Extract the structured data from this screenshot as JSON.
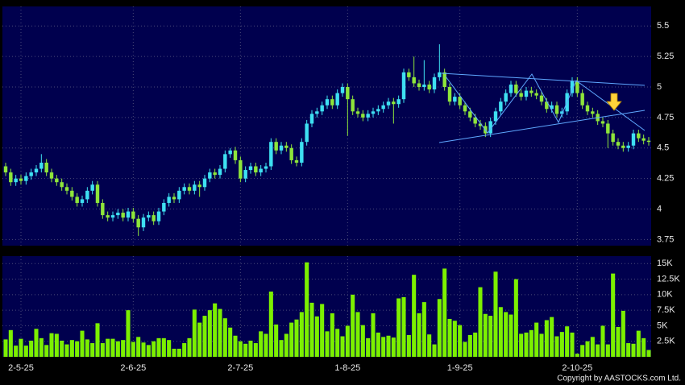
{
  "chart_data": {
    "type": "candlestick",
    "categories": [
      null,
      null,
      null,
      "2-5-25",
      null,
      null,
      null,
      null,
      null,
      null,
      null,
      null,
      null,
      null,
      null,
      null,
      null,
      null,
      null,
      null,
      null,
      null,
      null,
      null,
      null,
      "2-6-25",
      null,
      null,
      null,
      null,
      null,
      null,
      null,
      null,
      null,
      null,
      null,
      null,
      null,
      null,
      null,
      null,
      null,
      null,
      null,
      null,
      "2-7-25",
      null,
      null,
      null,
      null,
      null,
      null,
      null,
      null,
      null,
      null,
      null,
      null,
      null,
      null,
      null,
      null,
      null,
      null,
      null,
      null,
      "1-8-25",
      null,
      null,
      null,
      null,
      null,
      null,
      null,
      null,
      null,
      null,
      null,
      null,
      null,
      null,
      null,
      null,
      null,
      null,
      null,
      null,
      null,
      "1-9-25",
      null,
      null,
      null,
      null,
      null,
      null,
      null,
      null,
      null,
      null,
      null,
      null,
      null,
      null,
      null,
      null,
      null,
      null,
      null,
      null,
      null,
      null,
      "2-10-25",
      null,
      null,
      null,
      null,
      null,
      null,
      null,
      null,
      null,
      null,
      null,
      null,
      null,
      null
    ],
    "open": [
      4.35,
      4.3,
      4.22,
      4.25,
      4.23,
      4.27,
      4.3,
      4.33,
      4.38,
      4.3,
      4.25,
      4.22,
      4.18,
      4.15,
      4.1,
      4.05,
      4.08,
      4.15,
      4.2,
      4.05,
      3.95,
      3.93,
      3.95,
      3.97,
      3.93,
      3.98,
      3.92,
      3.85,
      3.93,
      3.95,
      3.9,
      3.98,
      4.05,
      4.1,
      4.08,
      4.15,
      4.18,
      4.15,
      4.2,
      4.18,
      4.25,
      4.3,
      4.28,
      4.33,
      4.45,
      4.48,
      4.4,
      4.25,
      4.32,
      4.35,
      4.3,
      4.33,
      4.35,
      4.55,
      4.48,
      4.52,
      4.5,
      4.4,
      4.38,
      4.55,
      4.7,
      4.78,
      4.8,
      4.85,
      4.9,
      4.85,
      4.95,
      5.0,
      4.9,
      4.8,
      4.78,
      4.75,
      4.78,
      4.8,
      4.82,
      4.85,
      4.88,
      4.86,
      4.9,
      5.12,
      5.08,
      5.03,
      5.0,
      5.02,
      4.98,
      5.08,
      5.12,
      5.0,
      4.88,
      4.92,
      4.85,
      4.8,
      4.75,
      4.7,
      4.68,
      4.62,
      4.72,
      4.8,
      4.88,
      4.95,
      5.02,
      4.95,
      4.92,
      4.97,
      4.95,
      4.93,
      4.88,
      4.82,
      4.85,
      4.78,
      4.8,
      4.95,
      5.05,
      4.95,
      4.85,
      4.8,
      4.78,
      4.72,
      4.7,
      4.62,
      4.55,
      4.52,
      4.5,
      4.52,
      4.62,
      4.58,
      4.56
    ],
    "high": [
      4.38,
      4.33,
      4.28,
      4.28,
      4.3,
      4.33,
      4.36,
      4.45,
      4.41,
      4.33,
      4.28,
      4.25,
      4.21,
      4.18,
      4.13,
      4.11,
      4.18,
      4.23,
      4.23,
      4.08,
      3.98,
      3.98,
      4.0,
      4.0,
      4.01,
      4.01,
      3.95,
      3.96,
      3.98,
      3.98,
      4.01,
      4.08,
      4.13,
      4.13,
      4.18,
      4.21,
      4.21,
      4.23,
      4.23,
      4.28,
      4.33,
      4.33,
      4.36,
      4.48,
      4.5,
      4.51,
      4.43,
      4.35,
      4.38,
      4.38,
      4.36,
      4.38,
      4.58,
      4.58,
      4.55,
      4.55,
      4.53,
      4.43,
      4.58,
      4.73,
      4.81,
      4.83,
      4.88,
      4.93,
      4.93,
      4.98,
      5.03,
      5.03,
      4.93,
      4.83,
      4.81,
      4.81,
      4.83,
      4.85,
      4.88,
      4.91,
      4.91,
      4.93,
      5.15,
      5.15,
      5.25,
      5.06,
      5.22,
      5.05,
      5.11,
      5.35,
      5.15,
      5.03,
      4.95,
      4.95,
      4.88,
      4.83,
      4.78,
      4.73,
      4.71,
      4.75,
      4.83,
      4.91,
      4.98,
      5.05,
      5.05,
      4.98,
      5.0,
      5.0,
      4.98,
      4.96,
      4.91,
      4.88,
      4.88,
      4.83,
      4.98,
      5.08,
      5.08,
      4.98,
      4.88,
      4.83,
      4.81,
      4.75,
      4.73,
      4.65,
      4.58,
      4.55,
      4.55,
      4.65,
      4.65,
      4.61,
      4.59
    ],
    "low": [
      4.27,
      4.19,
      4.19,
      4.2,
      4.2,
      4.24,
      4.27,
      4.3,
      4.27,
      4.22,
      4.19,
      4.15,
      4.12,
      4.07,
      4.02,
      4.02,
      4.05,
      4.12,
      4.02,
      3.92,
      3.9,
      3.9,
      3.92,
      3.9,
      3.9,
      3.89,
      3.78,
      3.82,
      3.9,
      3.87,
      3.87,
      3.95,
      4.02,
      4.05,
      4.05,
      4.12,
      4.12,
      4.12,
      4.1,
      4.15,
      4.22,
      4.25,
      4.25,
      4.3,
      4.42,
      4.37,
      4.22,
      4.22,
      4.29,
      4.27,
      4.27,
      4.3,
      4.32,
      4.45,
      4.45,
      4.47,
      4.37,
      4.35,
      4.35,
      4.52,
      4.67,
      4.75,
      4.77,
      4.82,
      4.82,
      4.82,
      4.92,
      4.6,
      4.77,
      4.75,
      4.72,
      4.72,
      4.75,
      4.77,
      4.79,
      4.82,
      4.7,
      4.83,
      4.87,
      5.05,
      5.0,
      4.97,
      4.97,
      4.95,
      4.95,
      5.05,
      4.97,
      4.85,
      4.85,
      4.82,
      4.77,
      4.72,
      4.67,
      4.65,
      4.59,
      4.59,
      4.69,
      4.77,
      4.85,
      4.92,
      4.92,
      4.89,
      4.89,
      4.92,
      4.9,
      4.85,
      4.79,
      4.79,
      4.75,
      4.75,
      4.77,
      4.92,
      4.92,
      4.82,
      4.77,
      4.75,
      4.69,
      4.67,
      4.5,
      4.52,
      4.49,
      4.47,
      4.47,
      4.49,
      4.55,
      4.53,
      4.52
    ],
    "close": [
      4.3,
      4.22,
      4.25,
      4.23,
      4.27,
      4.3,
      4.33,
      4.38,
      4.3,
      4.25,
      4.22,
      4.18,
      4.15,
      4.1,
      4.05,
      4.08,
      4.15,
      4.2,
      4.05,
      3.95,
      3.93,
      3.95,
      3.97,
      3.93,
      3.98,
      3.92,
      3.85,
      3.93,
      3.95,
      3.9,
      3.98,
      4.05,
      4.1,
      4.08,
      4.15,
      4.18,
      4.15,
      4.2,
      4.18,
      4.25,
      4.3,
      4.28,
      4.33,
      4.45,
      4.48,
      4.4,
      4.25,
      4.32,
      4.35,
      4.3,
      4.33,
      4.35,
      4.55,
      4.48,
      4.52,
      4.5,
      4.4,
      4.38,
      4.55,
      4.7,
      4.78,
      4.8,
      4.85,
      4.9,
      4.85,
      4.95,
      5.0,
      4.9,
      4.8,
      4.78,
      4.75,
      4.78,
      4.8,
      4.82,
      4.85,
      4.88,
      4.86,
      4.9,
      5.12,
      5.08,
      5.03,
      5.0,
      5.02,
      4.98,
      5.08,
      5.12,
      5.0,
      4.88,
      4.92,
      4.85,
      4.8,
      4.75,
      4.7,
      4.68,
      4.62,
      4.72,
      4.8,
      4.88,
      4.95,
      5.02,
      4.95,
      4.92,
      4.97,
      4.95,
      4.93,
      4.88,
      4.82,
      4.85,
      4.78,
      4.8,
      4.95,
      5.05,
      4.95,
      4.85,
      4.8,
      4.78,
      4.72,
      4.7,
      4.62,
      4.55,
      4.52,
      4.5,
      4.52,
      4.62,
      4.58,
      4.56,
      4.55
    ],
    "up_color": "#3ee0f2",
    "down_color": "#8ee63a",
    "ylim": [
      3.7,
      5.66
    ],
    "yticks": [
      3.75,
      4,
      4.25,
      4.5,
      4.75,
      5,
      5.25,
      5.5
    ],
    "grid": true,
    "volume": {
      "type": "bar",
      "color": "#7cf000",
      "values": [
        2800,
        4300,
        1800,
        2900,
        1800,
        2600,
        4500,
        3000,
        1900,
        3800,
        3700,
        2600,
        2000,
        2700,
        2500,
        4200,
        2800,
        2200,
        5400,
        2200,
        2900,
        2900,
        2500,
        2700,
        7500,
        2400,
        3200,
        2300,
        1900,
        2500,
        3000,
        3000,
        2700,
        1300,
        1300,
        2200,
        3000,
        7600,
        5500,
        6600,
        7500,
        8600,
        7700,
        6200,
        4700,
        3400,
        2500,
        2100,
        2600,
        2200,
        4100,
        3700,
        10500,
        5200,
        2700,
        3700,
        5500,
        6000,
        7200,
        15200,
        8700,
        6500,
        8500,
        4100,
        7000,
        4500,
        3300,
        5000,
        10000,
        7200,
        5100,
        3000,
        7000,
        3900,
        3200,
        3400,
        3100,
        9400,
        9600,
        3500,
        13200,
        7000,
        8800,
        3600,
        2000,
        9300,
        14200,
        6100,
        5800,
        5100,
        2400,
        3500,
        3900,
        11200,
        6900,
        6600,
        13700,
        8000,
        7200,
        6800,
        12500,
        3700,
        3900,
        4300,
        5500,
        3700,
        5900,
        6400,
        3300,
        4000,
        4900,
        3900,
        500,
        1900,
        2500,
        3200,
        2000,
        5000,
        2000,
        13400,
        4800,
        7400,
        2200,
        2100,
        4200,
        3000,
        1100
      ],
      "ylim": [
        0,
        16200
      ],
      "yticks": [
        {
          "value": 2500,
          "label": "2.5K"
        },
        {
          "value": 5000,
          "label": "5K"
        },
        {
          "value": 7500,
          "label": "7.5K"
        },
        {
          "value": 10000,
          "label": "10K"
        },
        {
          "value": 12500,
          "label": "12.5K"
        },
        {
          "value": 15000,
          "label": "15K"
        }
      ]
    },
    "footer": "Copyright by AASTOCKS.com Ltd."
  }
}
